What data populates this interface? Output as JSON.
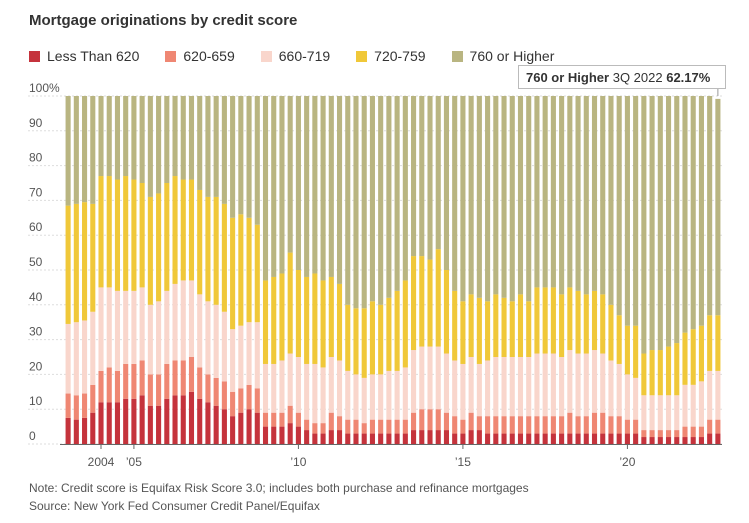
{
  "chart_data": {
    "type": "bar",
    "stacked": true,
    "title": "Mortgage originations by credit score",
    "yunit": "%",
    "ylim": [
      0,
      100
    ],
    "yticks": [
      0,
      10,
      20,
      30,
      40,
      50,
      60,
      70,
      80,
      90,
      "100%"
    ],
    "xtick_labels": [
      {
        "label": "2004",
        "year": 2004
      },
      {
        "label": "’05",
        "year": 2005
      },
      {
        "label": "’10",
        "year": 2010
      },
      {
        "label": "’15",
        "year": 2015
      },
      {
        "label": "’20",
        "year": 2020
      }
    ],
    "period": {
      "start": "2003 Q1",
      "end": "2022 Q3",
      "frequency": "quarterly"
    },
    "legend_position": "top",
    "series": [
      {
        "name": "Less Than 620",
        "color": "#c5333c",
        "values": [
          7.5,
          7,
          7.5,
          9,
          12,
          12,
          12,
          13,
          13,
          14,
          11,
          11,
          13,
          14,
          14,
          15,
          13,
          12,
          11,
          10,
          8,
          9,
          10,
          9,
          5,
          5,
          5,
          6,
          5,
          4,
          3,
          3,
          4,
          4,
          3,
          3,
          3,
          3,
          3,
          3,
          3,
          3,
          4,
          4,
          4,
          4,
          4,
          3,
          3,
          4,
          4,
          3,
          3,
          3,
          3,
          3,
          3,
          3,
          3,
          3,
          3,
          3,
          3,
          3,
          3,
          3,
          3,
          3,
          3,
          3,
          2,
          2,
          2,
          2,
          2,
          2,
          2,
          2,
          3,
          3
        ]
      },
      {
        "name": "620-659",
        "color": "#ef8773",
        "values": [
          7,
          7,
          7,
          8,
          9,
          10,
          9,
          10,
          10,
          10,
          9,
          9,
          10,
          10,
          10,
          10,
          9,
          8,
          8,
          8,
          7,
          7,
          7,
          7,
          4,
          4,
          4,
          5,
          4,
          3,
          3,
          3,
          5,
          4,
          4,
          4,
          3,
          4,
          4,
          4,
          4,
          4,
          5,
          6,
          6,
          6,
          5,
          5,
          4,
          5,
          4,
          5,
          5,
          5,
          5,
          5,
          5,
          5,
          5,
          5,
          5,
          6,
          5,
          5,
          6,
          6,
          5,
          5,
          4,
          4,
          2,
          2,
          2,
          2,
          2,
          3,
          3,
          3,
          4,
          4
        ]
      },
      {
        "name": "660-719",
        "color": "#f9d6cc",
        "values": [
          20,
          21,
          21,
          21,
          24,
          23,
          23,
          21,
          21,
          21,
          20,
          21,
          21,
          22,
          23,
          22,
          21,
          21,
          21,
          20,
          18,
          18,
          18,
          19,
          14,
          14,
          15,
          15,
          16,
          16,
          17,
          16,
          16,
          16,
          14,
          13,
          13,
          13,
          13,
          14,
          14,
          15,
          18,
          18,
          18,
          18,
          17,
          16,
          16,
          16,
          15,
          16,
          17,
          17,
          17,
          17,
          17,
          18,
          18,
          18,
          17,
          18,
          18,
          18,
          18,
          17,
          16,
          15,
          13,
          12,
          10,
          10,
          10,
          10,
          10,
          12,
          12,
          13,
          14,
          14
        ]
      },
      {
        "name": "720-759",
        "color": "#f0c839",
        "values": [
          34,
          34,
          34,
          31,
          32,
          32,
          32,
          33,
          32,
          30,
          31,
          31,
          31,
          31,
          29,
          29,
          30,
          30,
          31,
          31,
          32,
          32,
          30,
          28,
          24,
          25,
          25,
          29,
          25,
          25,
          26,
          25,
          23,
          22,
          19,
          19,
          20,
          21,
          20,
          21,
          23,
          25,
          27,
          26,
          25,
          28,
          24,
          20,
          18,
          18,
          19,
          17,
          18,
          17,
          16,
          18,
          16,
          19,
          19,
          19,
          18,
          18,
          18,
          17,
          17,
          17,
          16,
          14,
          14,
          15,
          12,
          13,
          13,
          14,
          15,
          15,
          16,
          16,
          16,
          16
        ]
      },
      {
        "name": "760 or Higher",
        "color": "#b9b581",
        "values": [
          31.5,
          31,
          30.5,
          31,
          23,
          23,
          24,
          23,
          24,
          25,
          29,
          28,
          25,
          23,
          24,
          24,
          27,
          29,
          29,
          31,
          35,
          34,
          35,
          37,
          53,
          52,
          51,
          45,
          50,
          52,
          51,
          53,
          52,
          54,
          60,
          61,
          61,
          59,
          60,
          58,
          56,
          53,
          46,
          46,
          47,
          44,
          50,
          56,
          59,
          57,
          58,
          59,
          57,
          58,
          59,
          57,
          59,
          55,
          55,
          55,
          57,
          55,
          56,
          57,
          56,
          57,
          60,
          63,
          66,
          66,
          74,
          73,
          73,
          72,
          71,
          68,
          67,
          66,
          63,
          62.17
        ]
      }
    ]
  },
  "legend": {
    "items": [
      {
        "label": "Less Than 620",
        "color": "#c5333c"
      },
      {
        "label": "620-659",
        "color": "#ef8773"
      },
      {
        "label": "660-719",
        "color": "#f9d6cc"
      },
      {
        "label": "720-759",
        "color": "#f0c839"
      },
      {
        "label": "760 or Higher",
        "color": "#b9b581"
      }
    ]
  },
  "tooltip": {
    "series": "760 or Higher",
    "period": "3Q 2022",
    "value": "62.17%"
  },
  "notes": {
    "note": "Note: Credit score is Equifax Risk Score 3.0; includes both purchase and refinance mortgages",
    "source": "Source: New York Fed Consumer Credit Panel/Equifax"
  }
}
